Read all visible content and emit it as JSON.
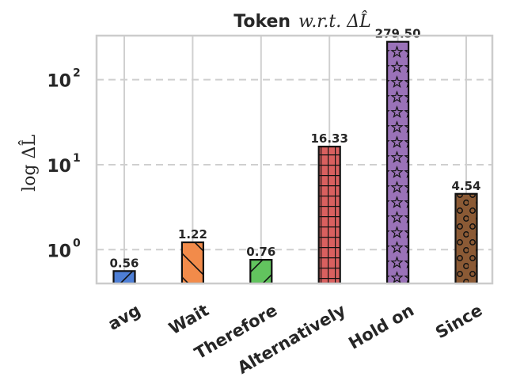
{
  "chart_data": {
    "type": "bar",
    "title": "Token w.r.t. ΔL̂",
    "title_parts": {
      "bold": "Token",
      "math": "w.r.t. ΔL̂"
    },
    "ylabel": "log ΔL̂",
    "yscale": "log",
    "ylim": [
      0.4,
      330
    ],
    "yticks": [
      1,
      10,
      100
    ],
    "ytick_labels": [
      [
        "10",
        "0"
      ],
      [
        "10",
        "1"
      ],
      [
        "10",
        "2"
      ]
    ],
    "grid": true,
    "categories": [
      "avg",
      "Wait",
      "Therefore",
      "Alternatively",
      "Hold on",
      "Since"
    ],
    "values": [
      0.56,
      1.22,
      0.76,
      16.33,
      279.5,
      4.54
    ],
    "value_labels": [
      "0.56",
      "1.22",
      "0.76",
      "16.33",
      "279.50",
      "4.54"
    ],
    "colors": [
      "#4e7fd6",
      "#f28b4a",
      "#62c45e",
      "#d9605f",
      "#9a72b8",
      "#8b5a35"
    ],
    "hatches": [
      "diagonal",
      "back-diagonal",
      "diagonal",
      "grid",
      "star",
      "circle"
    ]
  }
}
